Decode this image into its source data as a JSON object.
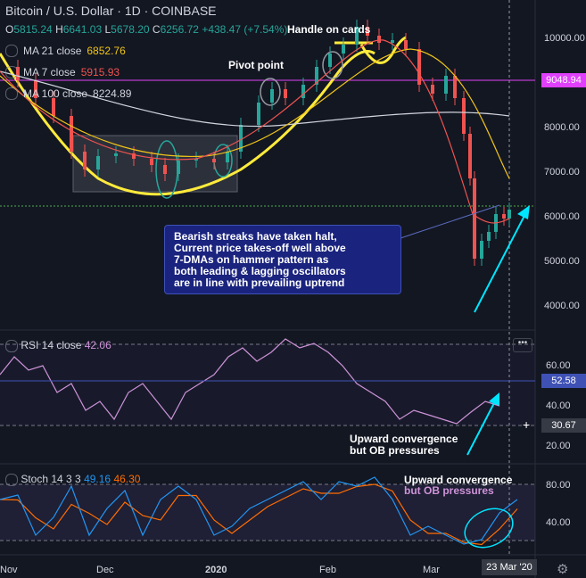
{
  "header": {
    "symbol": "Bitcoin / U.S. Dollar · 1D · COINBASE",
    "ohlc": {
      "o_label": "O",
      "o": "5815.24",
      "h_label": "H",
      "h": "6641.03",
      "l_label": "L",
      "l": "5678.20",
      "c_label": "C",
      "c": "6256.72",
      "change": "+438.47 (+7.54%)"
    },
    "overlay_text": "Handle on cards"
  },
  "indicators": [
    {
      "label": "MA 21 close",
      "value": "6852.76",
      "color": "#f0c419"
    },
    {
      "label": "MA 7 close",
      "value": "5915.93",
      "color": "#ef5350"
    },
    {
      "label": "MA 100 close",
      "value": "8224.89",
      "color": "#d1d4dc"
    }
  ],
  "price_axis": {
    "labels": [
      "10000.00",
      "9000.00",
      "8000.00",
      "7000.00",
      "6000.00",
      "5000.00",
      "4000.00"
    ],
    "highlight": "9048.94",
    "highlight_color": "#e040fb"
  },
  "annotations": {
    "pivot": "Pivot point",
    "handle": "Handle on cards",
    "box_lines": [
      "Bearish streaks have taken halt,",
      "Current price takes-off well above",
      "7-DMAs on hammer pattern as",
      "both leading & lagging oscillators",
      "are in line with prevailing uptrend"
    ],
    "rsi_note_1": "Upward convergence",
    "rsi_note_2": "but OB pressures",
    "stoch_note_1": "Upward convergence",
    "stoch_note_2": "but OB pressures"
  },
  "rsi": {
    "label": "RSI 14 close",
    "value": "42.06",
    "color": "#ce93d8",
    "axis": [
      "60.00",
      "40.00",
      "20.00"
    ],
    "tag_upper": "52.58",
    "tag_cursor": "30.67"
  },
  "stoch": {
    "label": "Stoch 14 3 3",
    "k": "49.16",
    "d": "46.30",
    "k_color": "#2196f3",
    "d_color": "#ff6d00",
    "axis": [
      "80.00",
      "40.00"
    ]
  },
  "time_axis": {
    "labels": [
      "Nov",
      "Dec",
      "2020",
      "Feb",
      "Mar"
    ],
    "cursor_date": "23 Mar '20"
  },
  "more_button": "•••",
  "settings_icon": "gear-icon"
}
